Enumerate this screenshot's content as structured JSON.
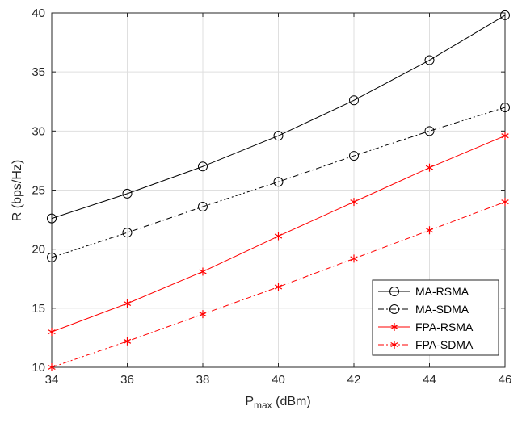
{
  "chart_data": {
    "type": "line",
    "title": "",
    "xlabel": "P",
    "xlabel_sub": "max",
    "xlabel_unit": " (dBm)",
    "ylabel": "R (bps/Hz)",
    "xlim": [
      34,
      46
    ],
    "ylim": [
      10,
      40
    ],
    "xticks": [
      34,
      36,
      38,
      40,
      42,
      44,
      46
    ],
    "yticks": [
      10,
      15,
      20,
      25,
      30,
      35,
      40
    ],
    "grid": true,
    "legend_position": "bottom-right",
    "x": [
      34,
      36,
      38,
      40,
      42,
      44,
      46
    ],
    "series": [
      {
        "name": "MA-RSMA",
        "values": [
          22.6,
          24.7,
          27.0,
          29.6,
          32.6,
          36.0,
          39.8
        ],
        "color": "#000000",
        "line_style": "solid",
        "marker": "circle"
      },
      {
        "name": "MA-SDMA",
        "values": [
          19.3,
          21.4,
          23.6,
          25.7,
          27.9,
          30.0,
          32.0
        ],
        "color": "#000000",
        "line_style": "dash-dot",
        "marker": "circle"
      },
      {
        "name": "FPA-RSMA",
        "values": [
          13.0,
          15.4,
          18.1,
          21.1,
          24.0,
          26.9,
          29.6
        ],
        "color": "#ff0000",
        "line_style": "solid",
        "marker": "asterisk"
      },
      {
        "name": "FPA-SDMA",
        "values": [
          10.0,
          12.2,
          14.5,
          16.8,
          19.2,
          21.6,
          24.0
        ],
        "color": "#ff0000",
        "line_style": "dash-dot",
        "marker": "asterisk"
      }
    ]
  }
}
